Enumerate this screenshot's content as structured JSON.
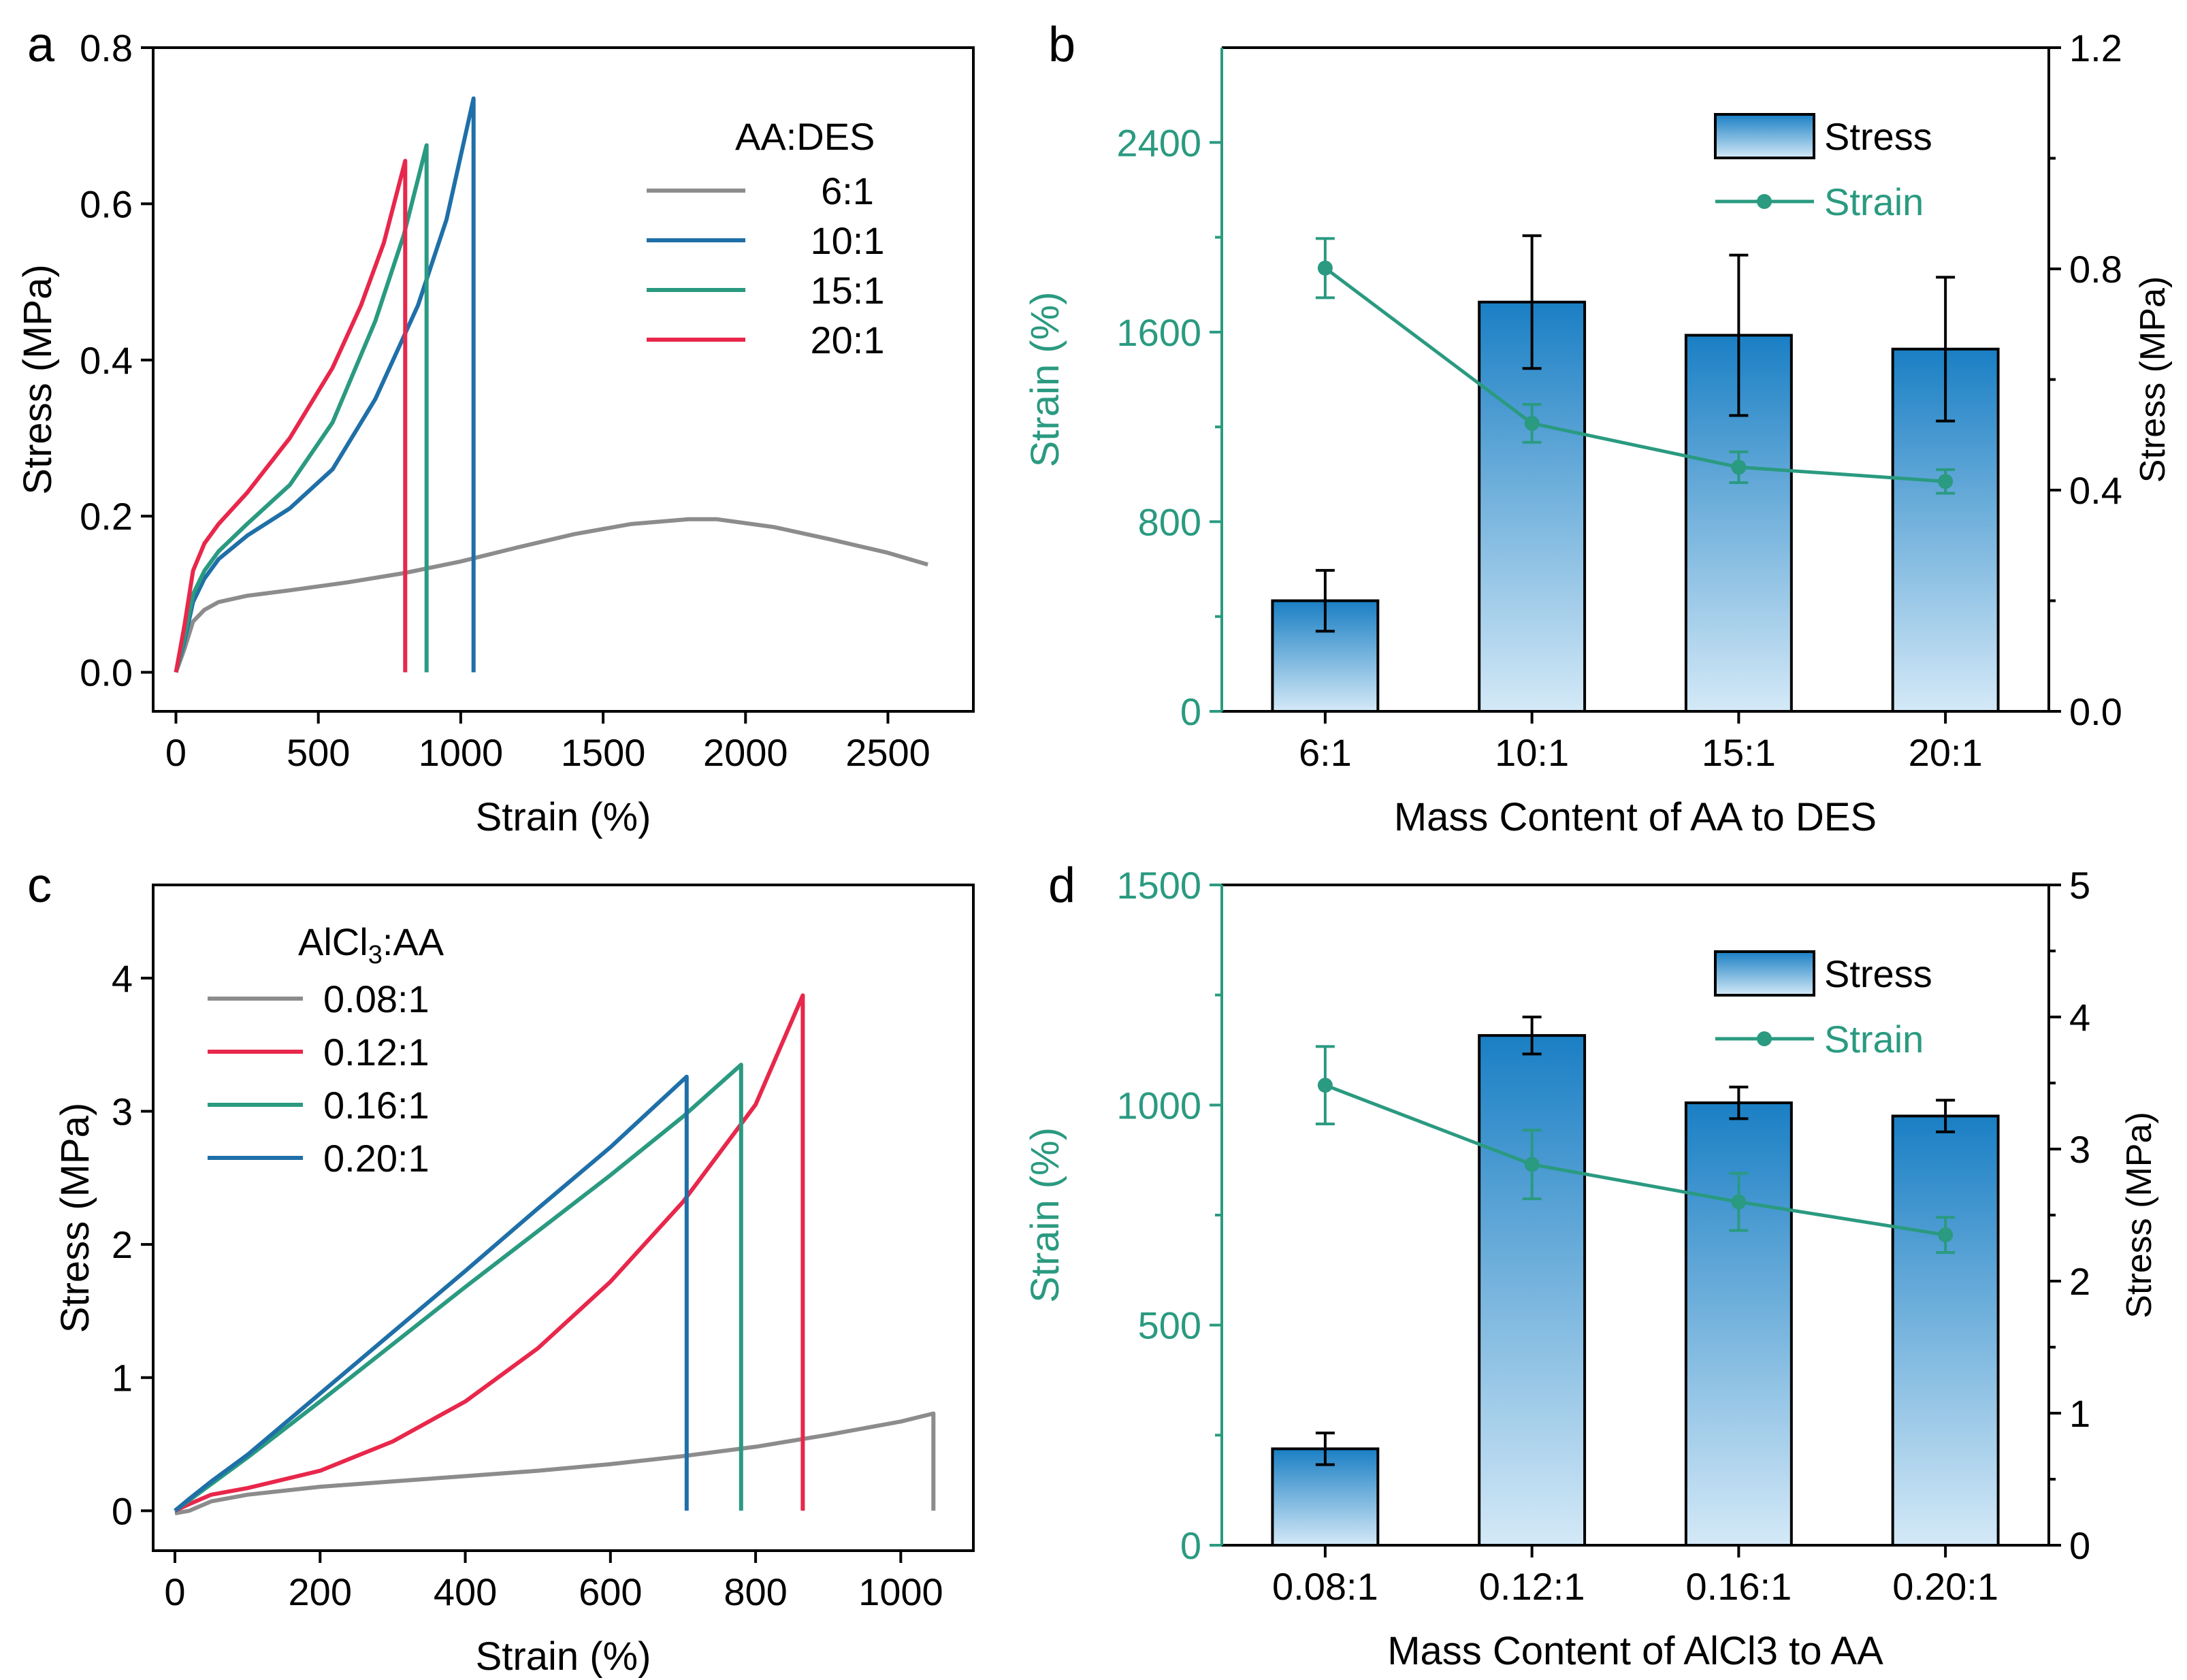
{
  "chart_data": [
    {
      "panel": "a",
      "type": "line",
      "xlabel": "Strain (%)",
      "ylabel": "Stress (MPa)",
      "xlim": [
        -80,
        2800
      ],
      "ylim": [
        -0.05,
        0.8
      ],
      "xticks": [
        0,
        500,
        1000,
        1500,
        2000,
        2500
      ],
      "yticks": [
        0.0,
        0.2,
        0.4,
        0.6,
        0.8
      ],
      "ytick_labels": [
        "0.0",
        "0.2",
        "0.4",
        "0.6",
        "0.8"
      ],
      "legend_title": "AA:DES",
      "series": [
        {
          "name": "6:1",
          "color": "#8c8c8c",
          "x": [
            0,
            30,
            60,
            100,
            150,
            250,
            400,
            600,
            800,
            1000,
            1200,
            1400,
            1600,
            1800,
            1900,
            2100,
            2300,
            2500,
            2640
          ],
          "y": [
            0,
            0.03,
            0.065,
            0.08,
            0.09,
            0.098,
            0.105,
            0.115,
            0.127,
            0.142,
            0.16,
            0.177,
            0.19,
            0.196,
            0.196,
            0.186,
            0.17,
            0.153,
            0.138
          ]
        },
        {
          "name": "10:1",
          "color": "#1f6fa8",
          "x": [
            0,
            30,
            60,
            100,
            150,
            250,
            400,
            550,
            700,
            850,
            950,
            1045,
            1045
          ],
          "y": [
            0,
            0.04,
            0.09,
            0.12,
            0.145,
            0.175,
            0.21,
            0.26,
            0.35,
            0.47,
            0.58,
            0.735,
            0.0
          ]
        },
        {
          "name": "15:1",
          "color": "#2a9a80",
          "x": [
            0,
            30,
            60,
            100,
            150,
            250,
            400,
            550,
            700,
            800,
            880,
            880
          ],
          "y": [
            0,
            0.045,
            0.1,
            0.13,
            0.155,
            0.19,
            0.24,
            0.32,
            0.45,
            0.56,
            0.675,
            0.0
          ]
        },
        {
          "name": "20:1",
          "color": "#e8274b",
          "x": [
            0,
            30,
            60,
            100,
            150,
            250,
            400,
            550,
            650,
            730,
            805,
            805
          ],
          "y": [
            0,
            0.06,
            0.13,
            0.165,
            0.19,
            0.23,
            0.3,
            0.39,
            0.47,
            0.55,
            0.655,
            0.0
          ]
        }
      ]
    },
    {
      "panel": "b",
      "type": "bar",
      "xlabel": "Mass Content of AA to DES",
      "ylabel_left": "Strain (%)",
      "ylabel_right": "Stress (MPa)",
      "categories": [
        "6:1",
        "10:1",
        "15:1",
        "20:1"
      ],
      "left_axis": {
        "range": [
          0,
          2800
        ],
        "ticks": [
          0,
          800,
          1600,
          2400
        ]
      },
      "right_axis": {
        "range": [
          0,
          1.2
        ],
        "ticks": [
          0.0,
          0.4,
          0.8,
          1.2
        ],
        "tick_labels": [
          "0.0",
          "0.4",
          "0.8",
          "1.2"
        ]
      },
      "legend": [
        "Stress",
        "Strain"
      ],
      "stress": {
        "values": [
          0.2,
          0.74,
          0.68,
          0.655
        ],
        "errors": [
          0.055,
          0.12,
          0.145,
          0.13
        ]
      },
      "strain": {
        "values": [
          1870,
          1215,
          1030,
          970
        ],
        "errors": [
          125,
          80,
          65,
          50
        ]
      }
    },
    {
      "panel": "c",
      "type": "line",
      "xlabel": "Strain (%)",
      "ylabel": "Stress (MPa)",
      "xlim": [
        -30,
        1100
      ],
      "ylim": [
        -0.3,
        4.7
      ],
      "xticks": [
        0,
        200,
        400,
        600,
        800,
        1000
      ],
      "yticks": [
        0,
        1,
        2,
        3,
        4
      ],
      "legend_title": "AlCl",
      "legend_title_sub": "3",
      "legend_title_suffix": ":AA",
      "series": [
        {
          "name": "0.08:1",
          "color": "#8c8c8c",
          "x": [
            0,
            20,
            50,
            100,
            200,
            300,
            400,
            500,
            600,
            700,
            800,
            900,
            1000,
            1045,
            1045
          ],
          "y": [
            -0.02,
            0.0,
            0.07,
            0.12,
            0.18,
            0.22,
            0.26,
            0.3,
            0.35,
            0.41,
            0.48,
            0.57,
            0.67,
            0.73,
            0.0
          ]
        },
        {
          "name": "0.12:1",
          "color": "#e8274b",
          "x": [
            0,
            20,
            50,
            100,
            200,
            300,
            400,
            500,
            600,
            700,
            800,
            865,
            865
          ],
          "y": [
            0.0,
            0.05,
            0.12,
            0.17,
            0.3,
            0.52,
            0.82,
            1.22,
            1.72,
            2.32,
            3.05,
            3.87,
            0.0
          ]
        },
        {
          "name": "0.16:1",
          "color": "#2a9a80",
          "x": [
            0,
            20,
            50,
            100,
            200,
            300,
            400,
            500,
            600,
            700,
            780,
            780
          ],
          "y": [
            0.0,
            0.08,
            0.2,
            0.4,
            0.82,
            1.25,
            1.68,
            2.1,
            2.52,
            2.96,
            3.35,
            0.0
          ]
        },
        {
          "name": "0.20:1",
          "color": "#1f6fa8",
          "x": [
            0,
            20,
            50,
            100,
            200,
            300,
            400,
            500,
            600,
            705,
            705
          ],
          "y": [
            0.0,
            0.09,
            0.22,
            0.42,
            0.88,
            1.34,
            1.8,
            2.27,
            2.73,
            3.26,
            0.0
          ]
        }
      ]
    },
    {
      "panel": "d",
      "type": "bar",
      "xlabel": "Mass Content of AlCl3 to AA",
      "ylabel_left": "Strain (%)",
      "ylabel_right": "Stress (MPa)",
      "categories": [
        "0.08:1",
        "0.12:1",
        "0.16:1",
        "0.20:1"
      ],
      "left_axis": {
        "range": [
          0,
          1500
        ],
        "ticks": [
          0,
          500,
          1000,
          1500
        ]
      },
      "right_axis": {
        "range": [
          0,
          5
        ],
        "ticks": [
          0,
          1,
          2,
          3,
          4,
          5
        ]
      },
      "legend": [
        "Stress",
        "Strain"
      ],
      "stress": {
        "values": [
          0.73,
          3.86,
          3.35,
          3.25
        ],
        "errors": [
          0.12,
          0.14,
          0.12,
          0.12
        ]
      },
      "strain": {
        "values": [
          1045,
          865,
          780,
          705
        ],
        "errors": [
          88,
          78,
          65,
          40
        ]
      }
    }
  ]
}
